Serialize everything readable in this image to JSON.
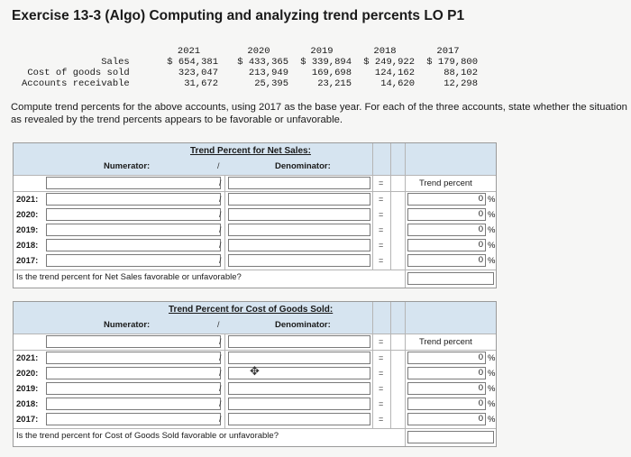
{
  "title": "Exercise 13-3 (Algo) Computing and analyzing trend percents LO P1",
  "data_table": {
    "row_labels": [
      "Sales",
      "Cost of goods sold",
      "Accounts receivable"
    ],
    "columns": [
      {
        "year": "2021",
        "values": [
          "$ 654,381",
          "323,047",
          "31,672"
        ]
      },
      {
        "year": "2020",
        "values": [
          "$ 433,365",
          "213,949",
          "25,395"
        ]
      },
      {
        "year": "2019",
        "values": [
          "$ 339,894",
          "169,698",
          "23,215"
        ]
      },
      {
        "year": "2018",
        "values": [
          "$ 249,922",
          "124,162",
          "14,620"
        ]
      },
      {
        "year": "2017",
        "values": [
          "$ 179,800",
          "88,102",
          "12,298"
        ]
      }
    ]
  },
  "instructions": "Compute trend percents for the above accounts, using 2017 as the base year. For each of the three accounts, state whether the situation as revealed by the trend percents appears to be favorable or unfavorable.",
  "sections": [
    {
      "header": "Trend Percent for Net Sales:",
      "numerator_label": "Numerator:",
      "denominator_label": "Denominator:",
      "slash": "/",
      "equals": "=",
      "trend_percent_label": "Trend percent",
      "rows": [
        {
          "year": "2021:",
          "value": "0",
          "unit": "%"
        },
        {
          "year": "2020:",
          "value": "0",
          "unit": "%"
        },
        {
          "year": "2019:",
          "value": "0",
          "unit": "%"
        },
        {
          "year": "2018:",
          "value": "0",
          "unit": "%"
        },
        {
          "year": "2017:",
          "value": "0",
          "unit": "%"
        }
      ],
      "question": "Is the trend percent for Net Sales favorable or unfavorable?"
    },
    {
      "header": "Trend Percent for Cost of Goods Sold:",
      "numerator_label": "Numerator:",
      "denominator_label": "Denominator:",
      "slash": "/",
      "equals": "=",
      "trend_percent_label": "Trend percent",
      "rows": [
        {
          "year": "2021:",
          "value": "0",
          "unit": "%"
        },
        {
          "year": "2020:",
          "value": "0",
          "unit": "%"
        },
        {
          "year": "2019:",
          "value": "0",
          "unit": "%"
        },
        {
          "year": "2018:",
          "value": "0",
          "unit": "%"
        },
        {
          "year": "2017:",
          "value": "0",
          "unit": "%"
        }
      ],
      "question": "Is the trend percent for Cost of Goods Sold favorable or unfavorable?"
    }
  ]
}
